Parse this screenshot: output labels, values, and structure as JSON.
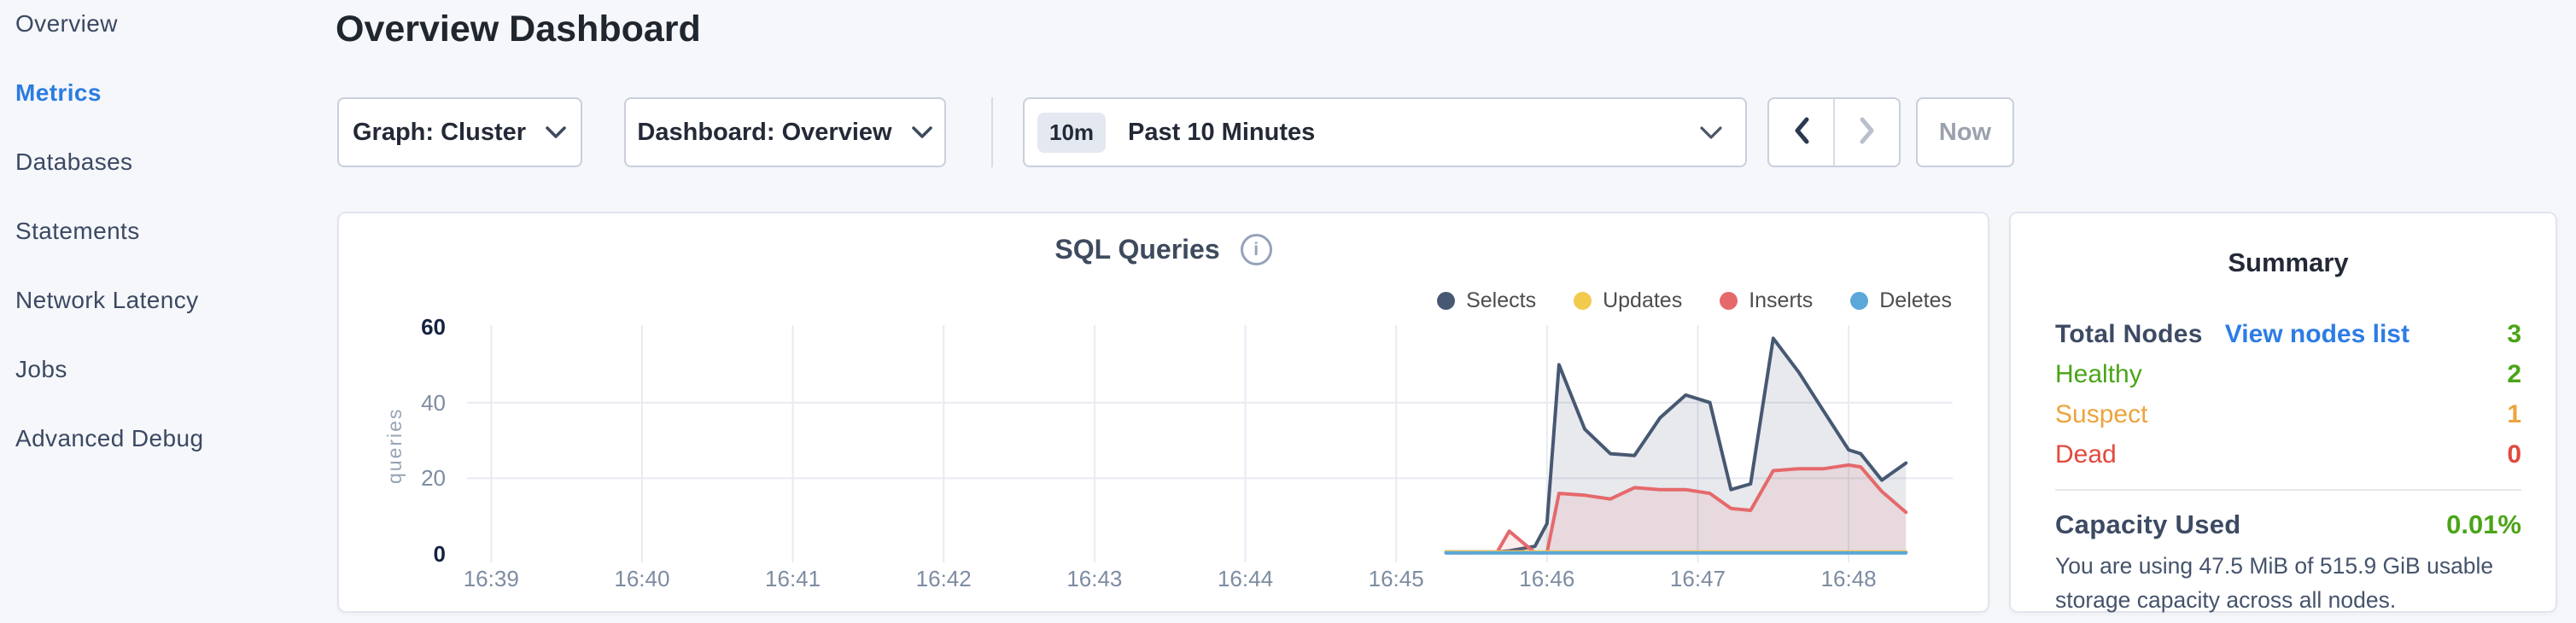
{
  "sidebar": {
    "items": [
      {
        "label": "Overview",
        "active": false
      },
      {
        "label": "Metrics",
        "active": true
      },
      {
        "label": "Databases",
        "active": false
      },
      {
        "label": "Statements",
        "active": false
      },
      {
        "label": "Network Latency",
        "active": false
      },
      {
        "label": "Jobs",
        "active": false
      },
      {
        "label": "Advanced Debug",
        "active": false
      }
    ]
  },
  "header": {
    "title": "Overview Dashboard"
  },
  "toolbar": {
    "graph_dropdown_label": "Graph: Cluster",
    "dashboard_dropdown_label": "Dashboard: Overview",
    "time_window_badge": "10m",
    "time_window_label": "Past 10 Minutes",
    "now_button_label": "Now"
  },
  "chart_data": {
    "type": "area",
    "title": "SQL Queries",
    "ylabel": "queries",
    "x_unit": "time of day (HH:MM), minutes stored as minutes after 16:00",
    "x_range": [
      38.84,
      48.69
    ],
    "y_range": [
      0,
      61.6
    ],
    "x_ticks": [
      {
        "t": 39,
        "label": "16:39"
      },
      {
        "t": 40,
        "label": "16:40"
      },
      {
        "t": 41,
        "label": "16:41"
      },
      {
        "t": 42,
        "label": "16:42"
      },
      {
        "t": 43,
        "label": "16:43"
      },
      {
        "t": 44,
        "label": "16:44"
      },
      {
        "t": 45,
        "label": "16:45"
      },
      {
        "t": 46,
        "label": "16:46"
      },
      {
        "t": 47,
        "label": "16:47"
      },
      {
        "t": 48,
        "label": "16:48"
      }
    ],
    "y_ticks": [
      {
        "v": 0,
        "label": "0",
        "strong": true
      },
      {
        "v": 20,
        "label": "20",
        "strong": false
      },
      {
        "v": 40,
        "label": "40",
        "strong": false
      },
      {
        "v": 60,
        "label": "60",
        "strong": true
      }
    ],
    "y_gridlines": [
      20,
      40
    ],
    "x_minutes": [
      45.33,
      45.5,
      45.67,
      45.75,
      45.92,
      46.0,
      46.08,
      46.25,
      46.42,
      46.58,
      46.75,
      46.92,
      47.08,
      47.22,
      47.35,
      47.5,
      47.67,
      47.83,
      48.0,
      48.08,
      48.22,
      48.38
    ],
    "series": [
      {
        "name": "Selects",
        "color": "#475872",
        "fill": "rgba(71,88,114,0.13)",
        "values": [
          0.5,
          0.5,
          0.5,
          0.8,
          2,
          8,
          50,
          33,
          26.5,
          26,
          36,
          42,
          40,
          17,
          18.5,
          57,
          48,
          38,
          27.5,
          26.5,
          19.5,
          24
        ]
      },
      {
        "name": "Inserts",
        "color": "#e5696b",
        "fill": "rgba(229,105,107,0.12)",
        "values": [
          0.3,
          0.3,
          0.5,
          6,
          0.3,
          0.3,
          16,
          15.5,
          14.5,
          17.5,
          17,
          17,
          16,
          12,
          11.5,
          22,
          22.5,
          22.5,
          23.5,
          23,
          16.5,
          11
        ]
      },
      {
        "name": "Updates",
        "color": "#f2ca4d",
        "fill": "none",
        "values": [
          0.5,
          0.5,
          0.5,
          0.5,
          0.5,
          0.5,
          0.5,
          0.5,
          0.5,
          0.5,
          0.5,
          0.5,
          0.5,
          0.5,
          0.5,
          0.5,
          0.5,
          0.5,
          0.5,
          0.5,
          0.5,
          0.5
        ]
      },
      {
        "name": "Deletes",
        "color": "#5ba7d9",
        "fill": "none",
        "values": [
          0.25,
          0.25,
          0.25,
          0.25,
          0.25,
          0.25,
          0.25,
          0.25,
          0.25,
          0.25,
          0.25,
          0.25,
          0.25,
          0.25,
          0.25,
          0.25,
          0.25,
          0.25,
          0.25,
          0.25,
          0.25,
          0.25
        ]
      }
    ],
    "draw_order": [
      "Selects",
      "Inserts",
      "Updates",
      "Deletes"
    ],
    "legend_order": [
      "Selects",
      "Updates",
      "Inserts",
      "Deletes"
    ],
    "legend_position": "top-right",
    "grid": true
  },
  "summary": {
    "title": "Summary",
    "total_label": "Total Nodes",
    "view_nodes_link": "View nodes list",
    "total_value": "3",
    "statuses": [
      {
        "label": "Healthy",
        "value": "2",
        "color": "#4aa417"
      },
      {
        "label": "Suspect",
        "value": "1",
        "color": "#eca43c"
      },
      {
        "label": "Dead",
        "value": "0",
        "color": "#e2493d"
      }
    ],
    "capacity_label": "Capacity Used",
    "capacity_value": "0.01%",
    "capacity_description": "You are using 47.5 MiB of 515.9 GiB usable storage capacity across all nodes."
  },
  "colors": {
    "background": "#f5f7fa",
    "active_nav_blue": "#2b7ce2",
    "link_blue": "#2d7ce5",
    "healthy_green": "#4aa417",
    "suspect_orange": "#eca43c",
    "dead_red": "#e2493d",
    "selects_navy": "#475872",
    "updates_yellow": "#f2ca4d",
    "inserts_red": "#e5696b",
    "deletes_blue": "#5ba7d9"
  }
}
